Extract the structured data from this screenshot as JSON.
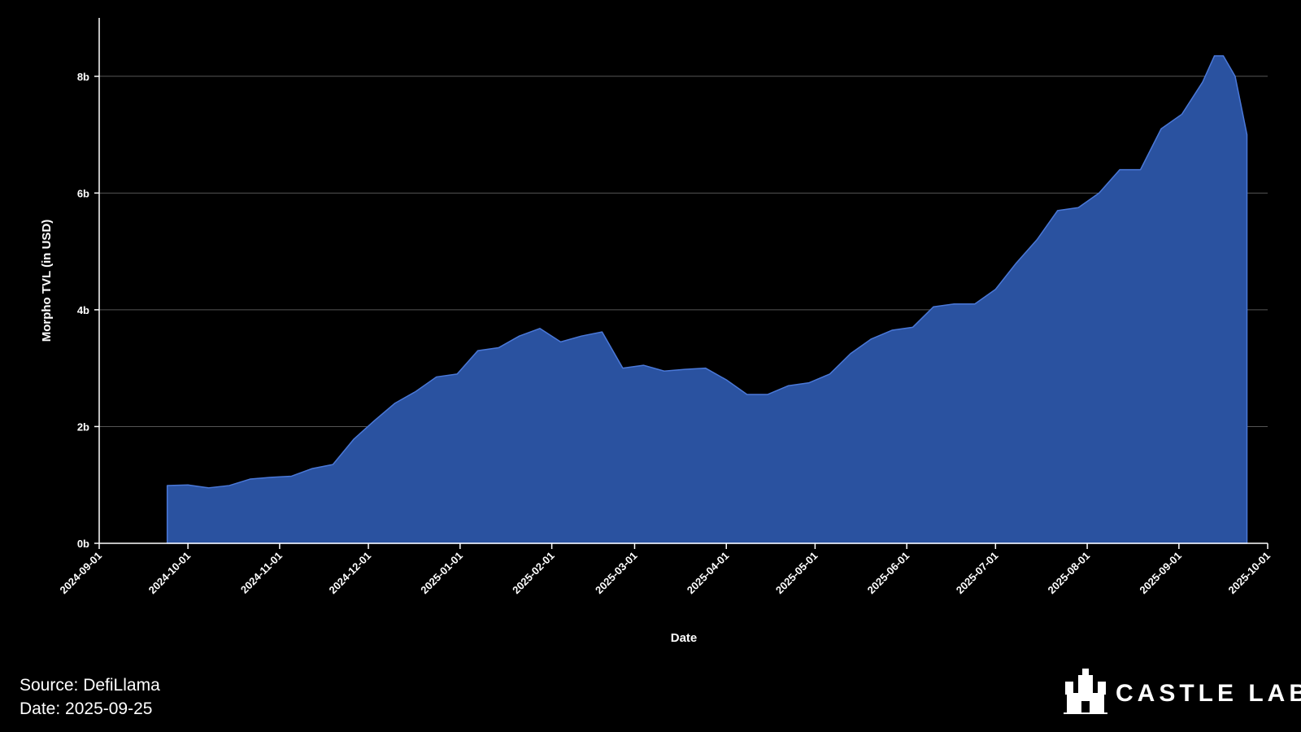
{
  "chart_data": {
    "type": "area",
    "y_label": "Morpho TVL (in USD)",
    "x_label": "Date",
    "source": "Source: DefiLlama",
    "date_note": "Date: 2025-09-25",
    "brand": "CASTLE LABS",
    "color": "#2a52a0",
    "line_color": "#4a78d8",
    "grid": true,
    "xlim": [
      "2024-09-01",
      "2025-10-01"
    ],
    "xticks": [
      "2024-09-01",
      "2024-10-01",
      "2024-11-01",
      "2024-12-01",
      "2025-01-01",
      "2025-02-01",
      "2025-03-01",
      "2025-04-01",
      "2025-05-01",
      "2025-06-01",
      "2025-07-01",
      "2025-08-01",
      "2025-09-01",
      "2025-10-01"
    ],
    "ylim": [
      0,
      9
    ],
    "yticks": [
      {
        "value": 0,
        "label": "0b"
      },
      {
        "value": 2,
        "label": "2b"
      },
      {
        "value": 4,
        "label": "4b"
      },
      {
        "value": 6,
        "label": "6b"
      },
      {
        "value": 8,
        "label": "8b"
      }
    ],
    "x": [
      "2024-09-24",
      "2024-10-01",
      "2024-10-08",
      "2024-10-15",
      "2024-10-22",
      "2024-10-29",
      "2024-11-05",
      "2024-11-12",
      "2024-11-19",
      "2024-11-26",
      "2024-12-03",
      "2024-12-10",
      "2024-12-17",
      "2024-12-24",
      "2024-12-31",
      "2025-01-07",
      "2025-01-14",
      "2025-01-21",
      "2025-01-28",
      "2025-02-04",
      "2025-02-11",
      "2025-02-18",
      "2025-02-25",
      "2025-03-04",
      "2025-03-11",
      "2025-03-18",
      "2025-03-25",
      "2025-04-01",
      "2025-04-08",
      "2025-04-15",
      "2025-04-22",
      "2025-04-29",
      "2025-05-06",
      "2025-05-13",
      "2025-05-20",
      "2025-05-27",
      "2025-06-03",
      "2025-06-10",
      "2025-06-17",
      "2025-06-24",
      "2025-07-01",
      "2025-07-08",
      "2025-07-15",
      "2025-07-22",
      "2025-07-29",
      "2025-08-05",
      "2025-08-12",
      "2025-08-19",
      "2025-08-26",
      "2025-09-02",
      "2025-09-09",
      "2025-09-13",
      "2025-09-16",
      "2025-09-20",
      "2025-09-24"
    ],
    "values": [
      0.99,
      1.0,
      0.95,
      0.99,
      1.1,
      1.13,
      1.15,
      1.28,
      1.35,
      1.78,
      2.1,
      2.4,
      2.6,
      2.85,
      2.9,
      3.3,
      3.35,
      3.55,
      3.68,
      3.45,
      3.55,
      3.62,
      3.0,
      3.05,
      2.95,
      2.98,
      3.0,
      2.8,
      2.55,
      2.55,
      2.7,
      2.75,
      2.9,
      3.25,
      3.5,
      3.65,
      3.7,
      4.05,
      4.1,
      4.1,
      4.35,
      4.8,
      5.2,
      5.7,
      5.75,
      6.0,
      6.4,
      6.4,
      7.1,
      7.35,
      7.9,
      8.35,
      8.35,
      8.0,
      7.0
    ]
  }
}
